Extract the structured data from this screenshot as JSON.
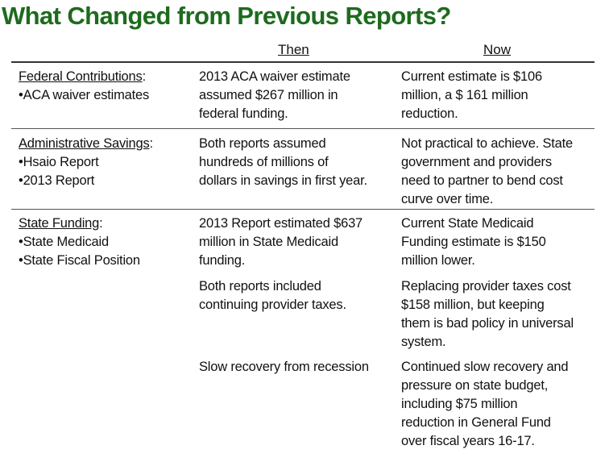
{
  "title": "What Changed from Previous Reports?",
  "headers": {
    "then": "Then",
    "now": "Now"
  },
  "rows": [
    {
      "category": "Federal Contributions",
      "bullets": [
        "•ACA waiver estimates"
      ],
      "items": [
        {
          "then": [
            "2013 ACA waiver estimate",
            "assumed $267 million in",
            "federal funding."
          ],
          "now": [
            "Current estimate is $106",
            "million, a $ 161 million",
            "reduction."
          ]
        }
      ]
    },
    {
      "category": "Administrative Savings",
      "bullets": [
        "•Hsaio Report",
        "•2013 Report"
      ],
      "items": [
        {
          "then": [
            "Both reports assumed",
            "hundreds of millions of",
            "dollars in savings in first year."
          ],
          "now": [
            "Not practical to achieve.  State",
            "government and providers",
            "need to partner to bend cost",
            "curve over time."
          ]
        }
      ]
    },
    {
      "category": "State Funding",
      "bullets": [
        "•State Medicaid",
        "•State Fiscal Position"
      ],
      "items": [
        {
          "then": [
            "2013 Report estimated $637",
            "million in State Medicaid",
            "funding."
          ],
          "now": [
            "Current State Medicaid",
            "Funding estimate is $150",
            "million lower."
          ]
        },
        {
          "then": [
            "Both reports included",
            "continuing provider taxes."
          ],
          "now": [
            "Replacing provider taxes cost",
            "$158 million, but keeping",
            "them is bad policy in universal",
            "system."
          ]
        },
        {
          "then": [
            "Slow recovery from recession"
          ],
          "now": [
            "Continued slow recovery and",
            "pressure on state budget,",
            "including $75 million",
            "reduction in General Fund",
            "over fiscal years 16-17."
          ]
        }
      ]
    }
  ],
  "colon": ":",
  "colors": {
    "title": "#1d6b1d"
  }
}
